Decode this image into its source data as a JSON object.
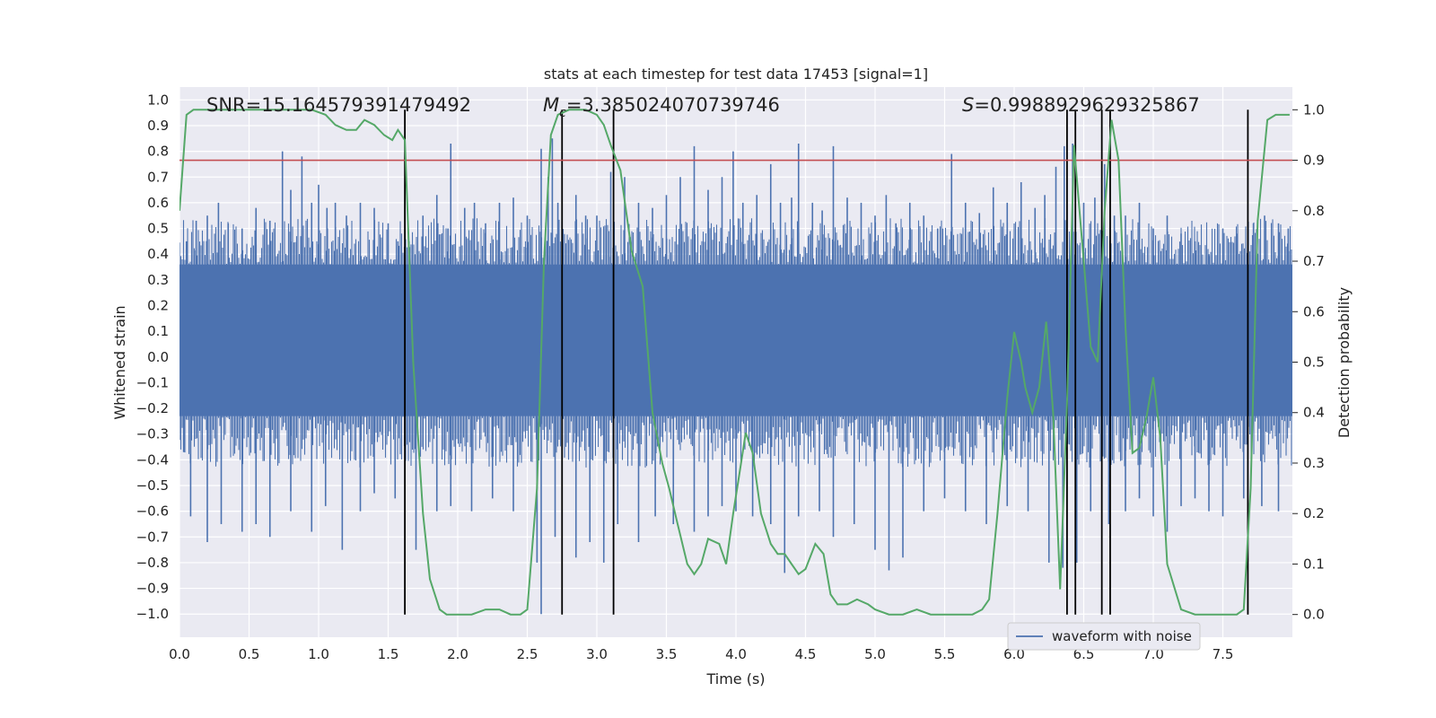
{
  "chart_data": {
    "type": "line",
    "title": "stats at each timestep for test data 17453 [signal=1]",
    "xlabel": "Time (s)",
    "ylabel_left": "Whitened strain",
    "ylabel_right": "Detection probability",
    "xlim": [
      0,
      8
    ],
    "ylim_left": [
      -1.09,
      1.05
    ],
    "ylim_right": [
      -0.045,
      1.045
    ],
    "xticks": [
      0.0,
      0.5,
      1.0,
      1.5,
      2.0,
      2.5,
      3.0,
      3.5,
      4.0,
      4.5,
      5.0,
      5.5,
      6.0,
      6.5,
      7.0,
      7.5
    ],
    "xtick_labels": [
      "0.0",
      "0.5",
      "1.0",
      "1.5",
      "2.0",
      "2.5",
      "3.0",
      "3.5",
      "4.0",
      "4.5",
      "5.0",
      "5.5",
      "6.0",
      "6.5",
      "7.0",
      "7.5"
    ],
    "yticks_left": [
      1.0,
      0.9,
      0.8,
      0.7,
      0.6,
      0.5,
      0.4,
      0.3,
      0.2,
      0.1,
      0.0,
      -0.1,
      -0.2,
      -0.3,
      -0.4,
      -0.5,
      -0.6,
      -0.7,
      -0.8,
      -0.9,
      -1.0
    ],
    "ytick_labels_left": [
      "1.0",
      "0.9",
      "0.8",
      "0.7",
      "0.6",
      "0.5",
      "0.4",
      "0.3",
      "0.2",
      "0.1",
      "0.0",
      "−0.1",
      "−0.2",
      "−0.3",
      "−0.4",
      "−0.5",
      "−0.6",
      "−0.7",
      "−0.8",
      "−0.9",
      "−1.0"
    ],
    "yticks_right": [
      1.0,
      0.9,
      0.8,
      0.7,
      0.6,
      0.5,
      0.4,
      0.3,
      0.2,
      0.1,
      0.0
    ],
    "ytick_labels_right": [
      "1.0",
      "0.9",
      "0.8",
      "0.7",
      "0.6",
      "0.5",
      "0.4",
      "0.3",
      "0.2",
      "0.1",
      "0.0"
    ],
    "annotations": {
      "snr": "SNR=15.164579391479492",
      "mc_symbol": "M",
      "mc_subscript": "c",
      "mc_value": "=3.385024070739746",
      "s_symbol": "S",
      "s_value": "=0.9988929629325867"
    },
    "threshold": {
      "value": 0.9,
      "axis": "right",
      "color": "#c44e52"
    },
    "vertical_markers": [
      1.62,
      2.75,
      3.12,
      6.38,
      6.44,
      6.63,
      6.69,
      7.68
    ],
    "waveform": {
      "name": "waveform with noise",
      "color": "#4c72b0",
      "dense_band": [
        -0.23,
        0.36
      ],
      "spikes_up": [
        [
          0.05,
          0.45
        ],
        [
          0.12,
          0.53
        ],
        [
          0.2,
          0.55
        ],
        [
          0.28,
          0.6
        ],
        [
          0.35,
          0.52
        ],
        [
          0.45,
          0.5
        ],
        [
          0.55,
          0.58
        ],
        [
          0.65,
          0.53
        ],
        [
          0.74,
          0.8
        ],
        [
          0.8,
          0.65
        ],
        [
          0.88,
          0.78
        ],
        [
          0.95,
          0.6
        ],
        [
          1.0,
          0.67
        ],
        [
          1.06,
          0.58
        ],
        [
          1.12,
          0.6
        ],
        [
          1.2,
          0.55
        ],
        [
          1.3,
          0.6
        ],
        [
          1.4,
          0.58
        ],
        [
          1.5,
          0.52
        ],
        [
          1.57,
          0.45
        ],
        [
          1.65,
          0.45
        ],
        [
          1.75,
          0.55
        ],
        [
          1.85,
          0.63
        ],
        [
          1.93,
          0.5
        ],
        [
          1.95,
          0.83
        ],
        [
          2.05,
          0.58
        ],
        [
          2.12,
          0.6
        ],
        [
          2.2,
          0.52
        ],
        [
          2.3,
          0.6
        ],
        [
          2.4,
          0.62
        ],
        [
          2.5,
          0.55
        ],
        [
          2.6,
          0.81
        ],
        [
          2.65,
          0.7
        ],
        [
          2.68,
          0.85
        ],
        [
          2.72,
          0.6
        ],
        [
          2.85,
          0.63
        ],
        [
          2.92,
          0.55
        ],
        [
          3.0,
          0.55
        ],
        [
          3.1,
          0.72
        ],
        [
          3.2,
          0.7
        ],
        [
          3.3,
          0.6
        ],
        [
          3.4,
          0.58
        ],
        [
          3.5,
          0.63
        ],
        [
          3.6,
          0.7
        ],
        [
          3.7,
          0.82
        ],
        [
          3.8,
          0.65
        ],
        [
          3.9,
          0.7
        ],
        [
          3.98,
          0.8
        ],
        [
          4.05,
          0.6
        ],
        [
          4.15,
          0.63
        ],
        [
          4.25,
          0.75
        ],
        [
          4.32,
          0.6
        ],
        [
          4.4,
          0.62
        ],
        [
          4.45,
          0.83
        ],
        [
          4.55,
          0.6
        ],
        [
          4.62,
          0.57
        ],
        [
          4.7,
          0.82
        ],
        [
          4.8,
          0.62
        ],
        [
          4.9,
          0.6
        ],
        [
          5.0,
          0.55
        ],
        [
          5.08,
          0.63
        ],
        [
          5.15,
          0.52
        ],
        [
          5.25,
          0.6
        ],
        [
          5.35,
          0.55
        ],
        [
          5.45,
          0.5
        ],
        [
          5.55,
          0.79
        ],
        [
          5.65,
          0.6
        ],
        [
          5.75,
          0.56
        ],
        [
          5.85,
          0.66
        ],
        [
          5.95,
          0.6
        ],
        [
          6.05,
          0.68
        ],
        [
          6.15,
          0.58
        ],
        [
          6.22,
          0.63
        ],
        [
          6.3,
          0.74
        ],
        [
          6.36,
          0.82
        ],
        [
          6.42,
          0.83
        ],
        [
          6.5,
          0.6
        ],
        [
          6.58,
          0.62
        ],
        [
          6.65,
          0.75
        ],
        [
          6.72,
          0.55
        ],
        [
          6.8,
          0.55
        ],
        [
          6.9,
          0.6
        ],
        [
          7.0,
          0.5
        ],
        [
          7.1,
          0.55
        ],
        [
          7.2,
          0.48
        ],
        [
          7.3,
          0.45
        ],
        [
          7.4,
          0.4
        ],
        [
          7.5,
          0.5
        ],
        [
          7.6,
          0.48
        ],
        [
          7.72,
          0.52
        ],
        [
          7.8,
          0.55
        ],
        [
          7.9,
          0.52
        ],
        [
          7.97,
          0.5
        ]
      ],
      "spikes_down": [
        [
          0.03,
          -0.37
        ],
        [
          0.08,
          -0.62
        ],
        [
          0.2,
          -0.72
        ],
        [
          0.3,
          -0.65
        ],
        [
          0.45,
          -0.68
        ],
        [
          0.55,
          -0.65
        ],
        [
          0.65,
          -0.7
        ],
        [
          0.8,
          -0.6
        ],
        [
          0.95,
          -0.68
        ],
        [
          1.05,
          -0.58
        ],
        [
          1.17,
          -0.75
        ],
        [
          1.3,
          -0.6
        ],
        [
          1.4,
          -0.53
        ],
        [
          1.55,
          -0.55
        ],
        [
          1.7,
          -0.75
        ],
        [
          1.85,
          -0.6
        ],
        [
          1.95,
          -0.58
        ],
        [
          2.1,
          -0.6
        ],
        [
          2.25,
          -0.55
        ],
        [
          2.4,
          -0.6
        ],
        [
          2.57,
          -0.8
        ],
        [
          2.6,
          -1.0
        ],
        [
          2.7,
          -0.7
        ],
        [
          2.85,
          -0.78
        ],
        [
          2.95,
          -0.72
        ],
        [
          3.05,
          -0.8
        ],
        [
          3.15,
          -0.65
        ],
        [
          3.3,
          -0.72
        ],
        [
          3.42,
          -0.62
        ],
        [
          3.55,
          -0.65
        ],
        [
          3.7,
          -0.68
        ],
        [
          3.8,
          -0.62
        ],
        [
          3.9,
          -0.58
        ],
        [
          4.0,
          -0.6
        ],
        [
          4.12,
          -0.62
        ],
        [
          4.25,
          -0.65
        ],
        [
          4.35,
          -0.84
        ],
        [
          4.45,
          -0.62
        ],
        [
          4.6,
          -0.6
        ],
        [
          4.7,
          -0.7
        ],
        [
          4.85,
          -0.65
        ],
        [
          5.0,
          -0.75
        ],
        [
          5.1,
          -0.83
        ],
        [
          5.2,
          -0.78
        ],
        [
          5.35,
          -0.6
        ],
        [
          5.5,
          -0.55
        ],
        [
          5.65,
          -0.6
        ],
        [
          5.8,
          -0.65
        ],
        [
          5.95,
          -0.58
        ],
        [
          6.1,
          -0.6
        ],
        [
          6.25,
          -0.8
        ],
        [
          6.35,
          -0.82
        ],
        [
          6.45,
          -0.8
        ],
        [
          6.55,
          -0.6
        ],
        [
          6.68,
          -0.65
        ],
        [
          6.8,
          -0.6
        ],
        [
          6.9,
          -0.55
        ],
        [
          7.0,
          -0.62
        ],
        [
          7.1,
          -0.68
        ],
        [
          7.2,
          -0.58
        ],
        [
          7.3,
          -0.55
        ],
        [
          7.4,
          -0.6
        ],
        [
          7.5,
          -0.62
        ],
        [
          7.65,
          -0.55
        ],
        [
          7.78,
          -0.58
        ],
        [
          7.9,
          -0.6
        ]
      ]
    },
    "probability": {
      "color": "#55a868",
      "x": [
        0.0,
        0.05,
        0.1,
        0.2,
        0.4,
        0.6,
        0.8,
        0.95,
        1.05,
        1.12,
        1.2,
        1.27,
        1.33,
        1.4,
        1.47,
        1.53,
        1.57,
        1.62,
        1.68,
        1.75,
        1.8,
        1.87,
        1.92,
        2.0,
        2.1,
        2.2,
        2.3,
        2.38,
        2.45,
        2.5,
        2.57,
        2.62,
        2.67,
        2.72,
        2.8,
        2.87,
        2.92,
        3.0,
        3.05,
        3.1,
        3.17,
        3.25,
        3.33,
        3.4,
        3.47,
        3.52,
        3.58,
        3.65,
        3.7,
        3.75,
        3.8,
        3.88,
        3.93,
        3.98,
        4.02,
        4.07,
        4.12,
        4.18,
        4.25,
        4.3,
        4.35,
        4.4,
        4.45,
        4.5,
        4.57,
        4.63,
        4.68,
        4.73,
        4.8,
        4.87,
        4.95,
        5.0,
        5.1,
        5.2,
        5.3,
        5.4,
        5.5,
        5.6,
        5.7,
        5.77,
        5.82,
        5.88,
        5.95,
        6.0,
        6.05,
        6.08,
        6.13,
        6.18,
        6.23,
        6.28,
        6.33,
        6.38,
        6.43,
        6.5,
        6.55,
        6.6,
        6.65,
        6.7,
        6.75,
        6.8,
        6.85,
        6.9,
        6.95,
        7.0,
        7.05,
        7.1,
        7.2,
        7.3,
        7.4,
        7.5,
        7.55,
        7.6,
        7.65,
        7.7,
        7.75,
        7.82,
        7.88,
        7.93,
        7.98
      ],
      "y": [
        0.8,
        0.99,
        1.0,
        1.0,
        1.0,
        1.0,
        1.0,
        1.0,
        0.99,
        0.97,
        0.96,
        0.96,
        0.98,
        0.97,
        0.95,
        0.94,
        0.96,
        0.94,
        0.5,
        0.2,
        0.07,
        0.01,
        0.0,
        0.0,
        0.0,
        0.01,
        0.01,
        0.0,
        0.0,
        0.01,
        0.25,
        0.7,
        0.95,
        0.99,
        1.0,
        1.0,
        1.0,
        0.99,
        0.97,
        0.93,
        0.88,
        0.72,
        0.65,
        0.4,
        0.3,
        0.25,
        0.18,
        0.1,
        0.08,
        0.1,
        0.15,
        0.14,
        0.1,
        0.2,
        0.27,
        0.36,
        0.32,
        0.2,
        0.14,
        0.12,
        0.12,
        0.1,
        0.08,
        0.09,
        0.14,
        0.12,
        0.04,
        0.02,
        0.02,
        0.03,
        0.02,
        0.01,
        0.0,
        0.0,
        0.01,
        0.0,
        0.0,
        0.0,
        0.0,
        0.01,
        0.03,
        0.2,
        0.43,
        0.56,
        0.5,
        0.45,
        0.4,
        0.45,
        0.58,
        0.4,
        0.05,
        0.42,
        0.93,
        0.7,
        0.53,
        0.5,
        0.8,
        0.98,
        0.9,
        0.57,
        0.32,
        0.33,
        0.39,
        0.47,
        0.35,
        0.1,
        0.01,
        0.0,
        0.0,
        0.0,
        0.0,
        0.0,
        0.01,
        0.25,
        0.78,
        0.98,
        0.99,
        0.99,
        0.99
      ]
    },
    "legend": {
      "location": "lower-right",
      "entries": [
        "waveform with noise"
      ]
    },
    "grid": true,
    "colors": {
      "plot_bg": "#eaeaf2",
      "grid": "#ffffff",
      "marker": "#000000"
    }
  }
}
